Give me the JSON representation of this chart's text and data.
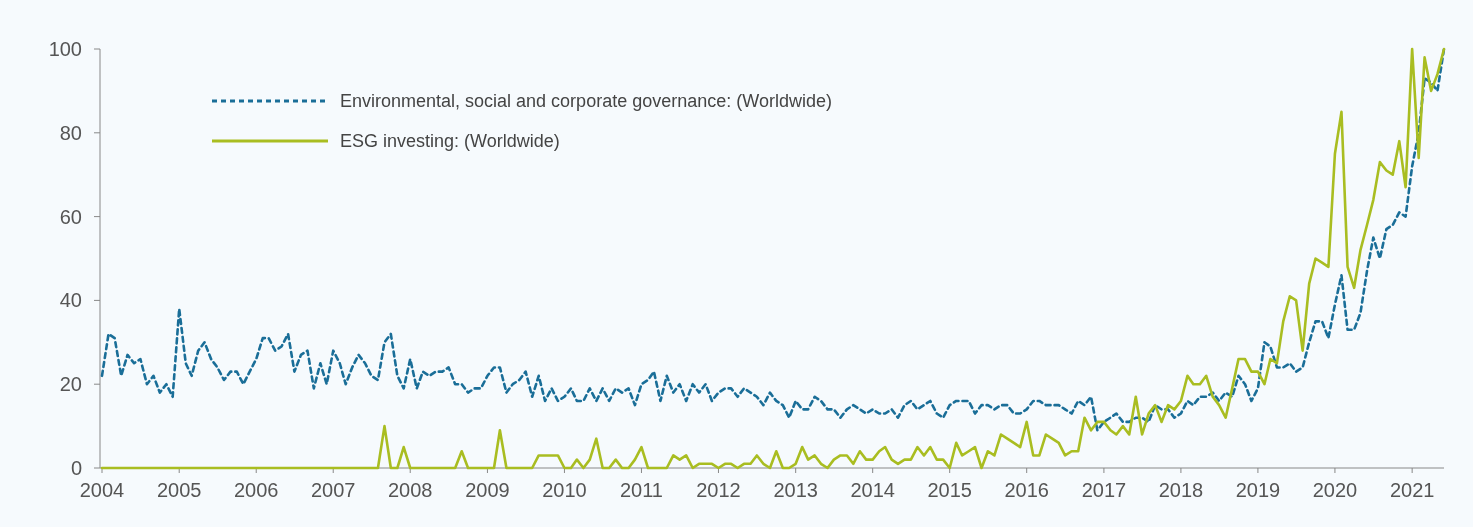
{
  "chart_data": {
    "type": "line",
    "x": [
      "2004-01",
      "2004-02",
      "2004-03",
      "2004-04",
      "2004-05",
      "2004-06",
      "2004-07",
      "2004-08",
      "2004-09",
      "2004-10",
      "2004-11",
      "2004-12",
      "2005-01",
      "2005-02",
      "2005-03",
      "2005-04",
      "2005-05",
      "2005-06",
      "2005-07",
      "2005-08",
      "2005-09",
      "2005-10",
      "2005-11",
      "2005-12",
      "2006-01",
      "2006-02",
      "2006-03",
      "2006-04",
      "2006-05",
      "2006-06",
      "2006-07",
      "2006-08",
      "2006-09",
      "2006-10",
      "2006-11",
      "2006-12",
      "2007-01",
      "2007-02",
      "2007-03",
      "2007-04",
      "2007-05",
      "2007-06",
      "2007-07",
      "2007-08",
      "2007-09",
      "2007-10",
      "2007-11",
      "2007-12",
      "2008-01",
      "2008-02",
      "2008-03",
      "2008-04",
      "2008-05",
      "2008-06",
      "2008-07",
      "2008-08",
      "2008-09",
      "2008-10",
      "2008-11",
      "2008-12",
      "2009-01",
      "2009-02",
      "2009-03",
      "2009-04",
      "2009-05",
      "2009-06",
      "2009-07",
      "2009-08",
      "2009-09",
      "2009-10",
      "2009-11",
      "2009-12",
      "2010-01",
      "2010-02",
      "2010-03",
      "2010-04",
      "2010-05",
      "2010-06",
      "2010-07",
      "2010-08",
      "2010-09",
      "2010-10",
      "2010-11",
      "2010-12",
      "2011-01",
      "2011-02",
      "2011-03",
      "2011-04",
      "2011-05",
      "2011-06",
      "2011-07",
      "2011-08",
      "2011-09",
      "2011-10",
      "2011-11",
      "2011-12",
      "2012-01",
      "2012-02",
      "2012-03",
      "2012-04",
      "2012-05",
      "2012-06",
      "2012-07",
      "2012-08",
      "2012-09",
      "2012-10",
      "2012-11",
      "2012-12",
      "2013-01",
      "2013-02",
      "2013-03",
      "2013-04",
      "2013-05",
      "2013-06",
      "2013-07",
      "2013-08",
      "2013-09",
      "2013-10",
      "2013-11",
      "2013-12",
      "2014-01",
      "2014-02",
      "2014-03",
      "2014-04",
      "2014-05",
      "2014-06",
      "2014-07",
      "2014-08",
      "2014-09",
      "2014-10",
      "2014-11",
      "2014-12",
      "2015-01",
      "2015-02",
      "2015-03",
      "2015-04",
      "2015-05",
      "2015-06",
      "2015-07",
      "2015-08",
      "2015-09",
      "2015-10",
      "2015-11",
      "2015-12",
      "2016-01",
      "2016-02",
      "2016-03",
      "2016-04",
      "2016-05",
      "2016-06",
      "2016-07",
      "2016-08",
      "2016-09",
      "2016-10",
      "2016-11",
      "2016-12",
      "2017-01",
      "2017-02",
      "2017-03",
      "2017-04",
      "2017-05",
      "2017-06",
      "2017-07",
      "2017-08",
      "2017-09",
      "2017-10",
      "2017-11",
      "2017-12",
      "2018-01",
      "2018-02",
      "2018-03",
      "2018-04",
      "2018-05",
      "2018-06",
      "2018-07",
      "2018-08",
      "2018-09",
      "2018-10",
      "2018-11",
      "2018-12",
      "2019-01",
      "2019-02",
      "2019-03",
      "2019-04",
      "2019-05",
      "2019-06",
      "2019-07",
      "2019-08",
      "2019-09",
      "2019-10",
      "2019-11",
      "2019-12",
      "2020-01",
      "2020-02",
      "2020-03",
      "2020-04",
      "2020-05",
      "2020-06",
      "2020-07",
      "2020-08",
      "2020-09",
      "2020-10",
      "2020-11",
      "2020-12",
      "2021-01",
      "2021-02",
      "2021-03",
      "2021-04",
      "2021-05",
      "2021-06"
    ],
    "series": [
      {
        "name": "Environmental, social and corporate governance: (Worldwide)",
        "color": "#1a6e98",
        "line_style": "dashed",
        "values": [
          22,
          32,
          31,
          22,
          27,
          25,
          26,
          20,
          22,
          18,
          20,
          17,
          38,
          25,
          22,
          28,
          30,
          26,
          24,
          21,
          23,
          23,
          20,
          23,
          26,
          31,
          31,
          28,
          29,
          32,
          23,
          27,
          28,
          19,
          25,
          20,
          28,
          25,
          20,
          24,
          27,
          25,
          22,
          21,
          30,
          32,
          22,
          19,
          26,
          19,
          23,
          22,
          23,
          23,
          24,
          20,
          20,
          18,
          19,
          19,
          22,
          24,
          24,
          18,
          20,
          21,
          23,
          17,
          22,
          16,
          19,
          16,
          17,
          19,
          16,
          16,
          19,
          16,
          19,
          16,
          19,
          18,
          19,
          15,
          20,
          21,
          23,
          16,
          22,
          18,
          20,
          16,
          20,
          18,
          20,
          16,
          18,
          19,
          19,
          17,
          19,
          18,
          17,
          15,
          18,
          16,
          15,
          12,
          16,
          14,
          14,
          17,
          16,
          14,
          14,
          12,
          14,
          15,
          14,
          13,
          14,
          13,
          13,
          14,
          12,
          15,
          16,
          14,
          15,
          16,
          13,
          12,
          15,
          16,
          16,
          16,
          13,
          15,
          15,
          14,
          15,
          15,
          13,
          13,
          14,
          16,
          16,
          15,
          15,
          15,
          14,
          13,
          16,
          15,
          17,
          9,
          11,
          12,
          13,
          11,
          11,
          12,
          12,
          11,
          15,
          14,
          14,
          12,
          13,
          16,
          15,
          17,
          17,
          18,
          16,
          18,
          17,
          22,
          20,
          16,
          19,
          30,
          29,
          24,
          24,
          25,
          23,
          24,
          30,
          35,
          35,
          31,
          39,
          46,
          33,
          33,
          37,
          47,
          55,
          50,
          57,
          58,
          61,
          60,
          72,
          80,
          93,
          92,
          90,
          100
        ]
      },
      {
        "name": "ESG investing: (Worldwide)",
        "color": "#a9bd21",
        "line_style": "solid",
        "values": [
          0,
          0,
          0,
          0,
          0,
          0,
          0,
          0,
          0,
          0,
          0,
          0,
          0,
          0,
          0,
          0,
          0,
          0,
          0,
          0,
          0,
          0,
          0,
          0,
          0,
          0,
          0,
          0,
          0,
          0,
          0,
          0,
          0,
          0,
          0,
          0,
          0,
          0,
          0,
          0,
          0,
          0,
          0,
          0,
          10,
          0,
          0,
          5,
          0,
          0,
          0,
          0,
          0,
          0,
          0,
          0,
          4,
          0,
          0,
          0,
          0,
          0,
          9,
          0,
          0,
          0,
          0,
          0,
          3,
          3,
          3,
          3,
          0,
          0,
          2,
          0,
          2,
          7,
          0,
          0,
          2,
          0,
          0,
          2,
          5,
          0,
          0,
          0,
          0,
          3,
          2,
          3,
          0,
          1,
          1,
          1,
          0,
          1,
          1,
          0,
          1,
          1,
          3,
          1,
          0,
          4,
          0,
          0,
          1,
          5,
          2,
          3,
          1,
          0,
          2,
          3,
          3,
          1,
          4,
          2,
          2,
          4,
          5,
          2,
          1,
          2,
          2,
          5,
          3,
          5,
          2,
          2,
          0,
          6,
          3,
          4,
          5,
          0,
          4,
          3,
          8,
          7,
          6,
          5,
          11,
          3,
          3,
          8,
          7,
          6,
          3,
          4,
          4,
          12,
          9,
          11,
          11,
          9,
          8,
          10,
          8,
          17,
          8,
          13,
          15,
          11,
          15,
          14,
          16,
          22,
          20,
          20,
          22,
          17,
          15,
          12,
          19,
          26,
          26,
          23,
          23,
          20,
          26,
          25,
          35,
          41,
          40,
          28,
          44,
          50,
          49,
          48,
          75,
          85,
          48,
          43,
          52,
          58,
          64,
          73,
          71,
          70,
          78,
          67,
          100,
          74,
          98,
          90,
          94,
          100
        ]
      }
    ],
    "xlim": [
      "2004-01",
      "2021-06"
    ],
    "xticks": [
      "2004",
      "2005",
      "2006",
      "2007",
      "2008",
      "2009",
      "2010",
      "2011",
      "2012",
      "2013",
      "2014",
      "2015",
      "2016",
      "2017",
      "2018",
      "2019",
      "2020",
      "2021"
    ],
    "ylim": [
      0,
      100
    ],
    "yticks": [
      0,
      20,
      40,
      60,
      80,
      100
    ],
    "grid": false,
    "legend": "top left"
  }
}
